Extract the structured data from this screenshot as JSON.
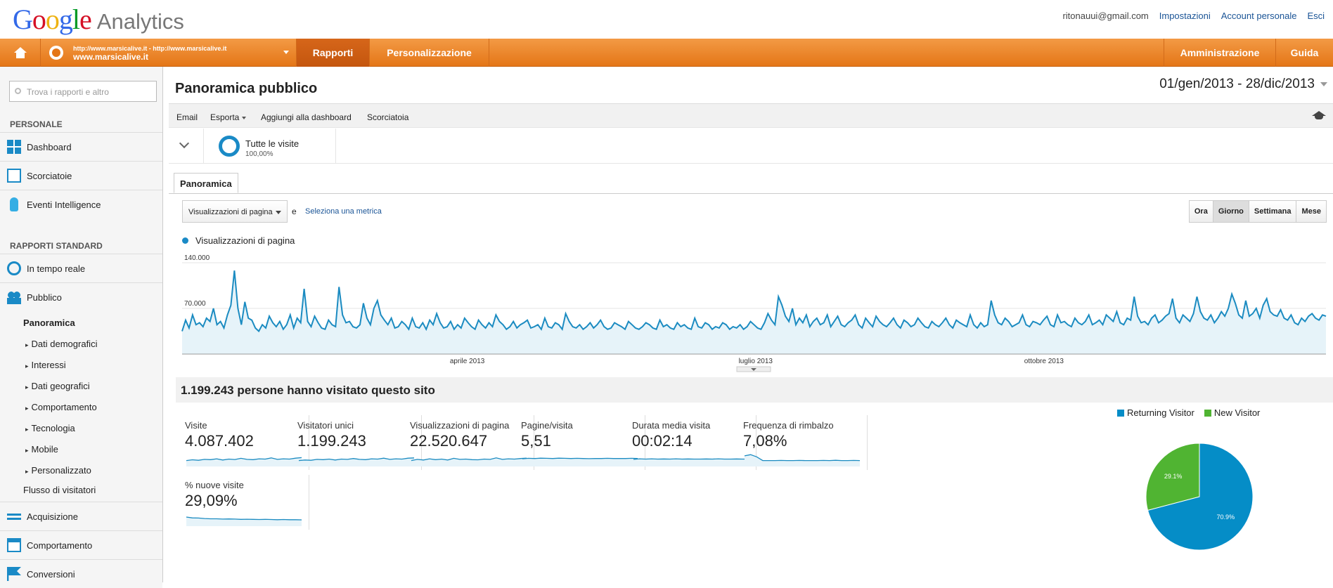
{
  "header": {
    "logo_letters": [
      "G",
      "o",
      "o",
      "g",
      "l",
      "e"
    ],
    "logo_product": "Analytics",
    "user_email": "ritonauui@gmail.com",
    "links": [
      "Impostazioni",
      "Account personale",
      "Esci"
    ]
  },
  "navbar": {
    "home_icon": "home-icon",
    "property_urls": "http://www.marsicalive.it - http://www.marsicalive.it",
    "property_name": "www.marsicalive.it",
    "tabs": [
      "Rapporti",
      "Personalizzazione"
    ],
    "active_tab": "Rapporti",
    "right": [
      "Amministrazione",
      "Guida"
    ]
  },
  "sidebar": {
    "search_placeholder": "Trova i rapporti e altro",
    "section_personal": "PERSONALE",
    "personal_items": [
      "Dashboard",
      "Scorciatoie",
      "Eventi Intelligence"
    ],
    "section_standard": "RAPPORTI STANDARD",
    "standard_items": [
      "In tempo reale",
      "Pubblico"
    ],
    "pubblico_sub": [
      "Panoramica",
      "Dati demografici",
      "Interessi",
      "Dati geografici",
      "Comportamento",
      "Tecnologia",
      "Mobile",
      "Personalizzato",
      "Flusso di visitatori"
    ],
    "bottom_items": [
      "Acquisizione",
      "Comportamento",
      "Conversioni"
    ]
  },
  "page": {
    "title": "Panoramica pubblico",
    "date_range": "01/gen/2013 - 28/dic/2013",
    "actions": [
      "Email",
      "Esporta",
      "Aggiungi alla dashboard",
      "Scorciatoia"
    ],
    "segment_name": "Tutte le visite",
    "segment_pct": "100,00%",
    "tab": "Panoramica",
    "metric_select": "Visualizzazioni di pagina",
    "and_text": "e",
    "select_metric": "Seleziona una metrica",
    "granularity": [
      "Ora",
      "Giorno",
      "Settimana",
      "Mese"
    ],
    "granularity_active": "Giorno",
    "visited_text": "1.199.243 persone hanno visitato questo sito"
  },
  "chart_data": [
    {
      "type": "area",
      "series_name": "Visualizzazioni di pagina",
      "y_ticks": [
        "140.000",
        "70.000"
      ],
      "ylim": [
        0,
        140000
      ],
      "x_labels": [
        "aprile 2013",
        "luglio 2013",
        "ottobre 2013"
      ],
      "x_range": [
        "2013-01-01",
        "2013-12-28"
      ],
      "values_daily_approx": [
        35000,
        52000,
        40000,
        60000,
        45000,
        48000,
        42000,
        55000,
        50000,
        70000,
        45000,
        50000,
        40000,
        60000,
        75000,
        128000,
        70000,
        45000,
        80000,
        55000,
        52000,
        40000,
        35000,
        45000,
        40000,
        58000,
        48000,
        42000,
        50000,
        38000,
        45000,
        60000,
        40000,
        55000,
        48000,
        100000,
        50000,
        42000,
        58000,
        48000,
        40000,
        38000,
        52000,
        45000,
        42000,
        103000,
        60000,
        48000,
        50000,
        42000,
        40000,
        45000,
        78000,
        55000,
        45000,
        70000,
        82000,
        60000,
        52000,
        45000,
        55000,
        40000,
        42000,
        50000,
        45000,
        38000,
        55000,
        42000,
        40000,
        48000,
        38000,
        52000,
        45000,
        62000,
        48000,
        40000,
        42000,
        50000,
        38000,
        45000,
        40000,
        55000,
        48000,
        42000,
        38000,
        52000,
        45000,
        40000,
        48000,
        42000,
        60000,
        50000,
        45000,
        38000,
        42000,
        50000,
        40000,
        45000,
        48000,
        52000,
        40000,
        42000,
        45000,
        38000,
        55000,
        42000,
        40000,
        48000,
        45000,
        38000,
        62000,
        50000,
        42000,
        40000,
        45000,
        38000,
        42000,
        48000,
        40000,
        45000,
        52000,
        42000,
        38000,
        40000,
        48000,
        45000,
        42000,
        38000,
        50000,
        45000,
        40000,
        38000,
        42000,
        48000,
        45000,
        40000,
        38000,
        52000,
        42000,
        45000,
        40000,
        38000,
        48000,
        42000,
        45000,
        40000,
        38000,
        55000,
        42000,
        40000,
        48000,
        45000,
        38000,
        42000,
        40000,
        48000,
        45000,
        38000,
        42000,
        40000,
        45000,
        38000,
        42000,
        50000,
        45000,
        40000,
        38000,
        48000,
        62000,
        52000,
        45000,
        88000,
        75000,
        58000,
        50000,
        70000,
        45000,
        55000,
        48000,
        60000,
        42000,
        50000,
        55000,
        45000,
        48000,
        60000,
        42000,
        50000,
        58000,
        45000,
        42000,
        48000,
        52000,
        60000,
        45000,
        40000,
        55000,
        48000,
        42000,
        58000,
        50000,
        45000,
        42000,
        48000,
        55000,
        45000,
        40000,
        52000,
        48000,
        42000,
        45000,
        55000,
        48000,
        42000,
        40000,
        50000,
        45000,
        42000,
        48000,
        55000,
        45000,
        40000,
        52000,
        48000,
        45000,
        42000,
        60000,
        45000,
        40000,
        48000,
        42000,
        45000,
        82000,
        60000,
        48000,
        45000,
        55000,
        50000,
        42000,
        45000,
        48000,
        60000,
        45000,
        42000,
        50000,
        48000,
        45000,
        52000,
        58000,
        45000,
        42000,
        60000,
        48000,
        50000,
        45000,
        42000,
        55000,
        48000,
        45000,
        50000,
        60000,
        45000,
        48000,
        52000,
        45000,
        60000,
        55000,
        50000,
        65000,
        48000,
        45000,
        55000,
        52000,
        88000,
        58000,
        48000,
        50000,
        45000,
        55000,
        60000,
        48000,
        52000,
        58000,
        62000,
        85000,
        55000,
        48000,
        60000,
        55000,
        50000,
        62000,
        88000,
        65000,
        55000,
        52000,
        60000,
        48000,
        55000,
        65000,
        58000,
        70000,
        92000,
        78000,
        60000,
        55000,
        82000,
        58000,
        62000,
        70000,
        55000,
        75000,
        85000,
        65000,
        60000,
        58000,
        68000,
        55000,
        52000,
        60000,
        48000,
        45000,
        55000,
        50000,
        58000,
        62000,
        55000,
        52000,
        60000,
        58000
      ]
    },
    {
      "type": "pie",
      "legend": [
        "Returning Visitor",
        "New Visitor"
      ],
      "labels": [
        "Returning Visitor",
        "New Visitor"
      ],
      "values": [
        70.9,
        29.1
      ],
      "slice_labels": [
        "70.9%",
        "29.1%"
      ],
      "colors": [
        "#058dc7",
        "#50b432"
      ]
    }
  ],
  "metrics": [
    {
      "title": "Visite",
      "value": "4.087.402",
      "spark": [
        40,
        45,
        42,
        48,
        46,
        52,
        44,
        50,
        47,
        55,
        48,
        46,
        52,
        50,
        58,
        48,
        52,
        50,
        56,
        60
      ]
    },
    {
      "title": "Visitatori unici",
      "value": "1.199.243",
      "spark": [
        40,
        44,
        42,
        48,
        46,
        50,
        44,
        50,
        48,
        54,
        48,
        46,
        52,
        50,
        56,
        48,
        52,
        50,
        56,
        58
      ]
    },
    {
      "title": "Visualizzazioni di pagina",
      "value": "22.520.647",
      "spark": [
        40,
        48,
        44,
        52,
        46,
        50,
        44,
        55,
        48,
        50,
        46,
        45,
        50,
        48,
        58,
        48,
        52,
        50,
        54,
        56
      ]
    },
    {
      "title": "Pagine/visita",
      "value": "5,51",
      "spark": [
        52,
        55,
        54,
        56,
        55,
        54,
        56,
        55,
        54,
        55,
        54,
        53,
        54,
        54,
        55,
        54,
        54,
        54,
        55,
        54
      ]
    },
    {
      "title": "Durata media visita",
      "value": "00:02:14",
      "spark": [
        48,
        52,
        50,
        52,
        50,
        51,
        50,
        52,
        50,
        51,
        50,
        50,
        51,
        50,
        52,
        50,
        50,
        51,
        50,
        50
      ]
    },
    {
      "title": "Frequenza di rimbalzo",
      "value": "7,08%",
      "spark": [
        72,
        80,
        65,
        40,
        40,
        40,
        41,
        40,
        40,
        41,
        40,
        40,
        40,
        41,
        40,
        42,
        40,
        40,
        41,
        40
      ]
    },
    {
      "title": "% nuove visite",
      "value": "29,09%",
      "spark": [
        62,
        56,
        55,
        52,
        50,
        50,
        48,
        49,
        48,
        46,
        47,
        46,
        45,
        46,
        45,
        44,
        45,
        44,
        44,
        43
      ]
    }
  ]
}
